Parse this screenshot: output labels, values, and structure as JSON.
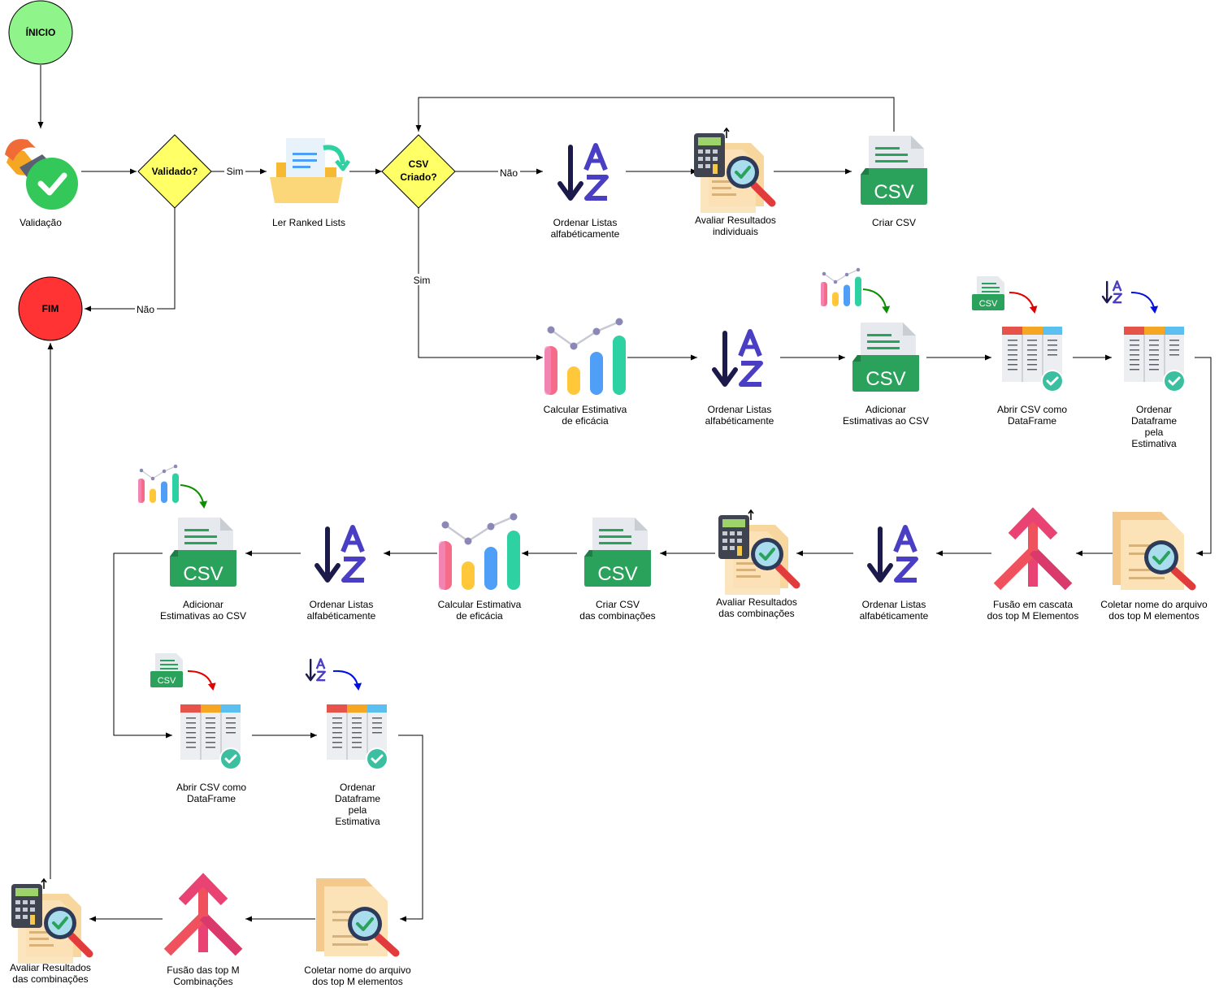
{
  "colors": {
    "start": "#8ff58a",
    "end": "#ff3333",
    "decision": "#ffff66",
    "csv_green": "#2aa25c",
    "arrow_green": "#0a8f00",
    "arrow_red": "#e00000",
    "arrow_blue": "#0010e0"
  },
  "start": {
    "label": "ÍNICIO"
  },
  "end": {
    "label": "FIM"
  },
  "decisions": {
    "validado": {
      "label": "Validado?"
    },
    "csv_criado": {
      "label_line1": "CSV",
      "label_line2": "Criado?"
    }
  },
  "edge_labels": {
    "sim_1": "Sim",
    "nao_1": "Não",
    "nao_2": "Não",
    "sim_2": "Sim"
  },
  "icon_texts": {
    "csv": "CSV",
    "csv_small": "CSV"
  },
  "nodes": {
    "validacao": {
      "icon": "stamp-check-icon",
      "lines": [
        "Validação"
      ]
    },
    "ler_ranked": {
      "icon": "folder-document-icon",
      "lines": [
        "Ler Ranked Lists"
      ]
    },
    "ordenar_1": {
      "icon": "sort-az-icon",
      "lines": [
        "Ordenar Listas",
        "alfabéticamente"
      ]
    },
    "avaliar_1": {
      "icon": "calculator-report-icon",
      "lines": [
        "Avaliar Resultados",
        "individuais"
      ]
    },
    "criar_csv": {
      "icon": "csv-file-icon",
      "lines": [
        "Criar CSV"
      ]
    },
    "calc_1": {
      "icon": "bar-chart-icon",
      "lines": [
        "Calcular Estimativa",
        "de eficácia"
      ]
    },
    "ordenar_2": {
      "icon": "sort-az-icon",
      "lines": [
        "Ordenar Listas",
        "alfabéticamente"
      ]
    },
    "adicionar_1": {
      "icon": "csv-add-chart-icon",
      "lines": [
        "Adicionar",
        "Estimativas ao CSV"
      ]
    },
    "abrir_1": {
      "icon": "dataframe-open-icon",
      "lines": [
        "Abrir CSV como",
        "DataFrame"
      ]
    },
    "ordenar_df_1": {
      "icon": "dataframe-sort-icon",
      "lines": [
        "Ordenar",
        "Dataframe",
        "pela",
        "Estimativa"
      ]
    },
    "coletar_1": {
      "icon": "document-search-icon",
      "lines": [
        "Coletar nome do arquivo",
        "dos top M elementos"
      ]
    },
    "fusao_1": {
      "icon": "merge-arrow-icon",
      "lines": [
        "Fusão em cascata",
        "dos top M Elementos"
      ]
    },
    "ordenar_3": {
      "icon": "sort-az-icon",
      "lines": [
        "Ordenar Listas",
        "alfabéticamente"
      ]
    },
    "avaliar_2": {
      "icon": "calculator-report-icon",
      "lines": [
        "Avaliar Resultados",
        "das combinações"
      ]
    },
    "criar_csv_2": {
      "icon": "csv-file-icon",
      "lines": [
        "Criar CSV",
        "das combinações"
      ]
    },
    "calc_2": {
      "icon": "bar-chart-icon",
      "lines": [
        "Calcular Estimativa",
        "de eficácia"
      ]
    },
    "ordenar_4": {
      "icon": "sort-az-icon",
      "lines": [
        "Ordenar Listas",
        "alfabéticamente"
      ]
    },
    "adicionar_2": {
      "icon": "csv-add-chart-icon",
      "lines": [
        "Adicionar",
        "Estimativas ao CSV"
      ]
    },
    "abrir_2": {
      "icon": "dataframe-open-icon",
      "lines": [
        "Abrir CSV como",
        "DataFrame"
      ]
    },
    "ordenar_df_2": {
      "icon": "dataframe-sort-icon",
      "lines": [
        "Ordenar",
        "Dataframe",
        "pela",
        "Estimativa"
      ]
    },
    "coletar_2": {
      "icon": "document-search-icon",
      "lines": [
        "Coletar nome do arquivo",
        "dos top M elementos"
      ]
    },
    "fusao_2": {
      "icon": "merge-arrow-icon",
      "lines": [
        "Fusão das top M",
        "Combinações"
      ]
    },
    "avaliar_3": {
      "icon": "calculator-report-icon",
      "lines": [
        "Avaliar Resultados",
        "das combinações"
      ]
    }
  }
}
